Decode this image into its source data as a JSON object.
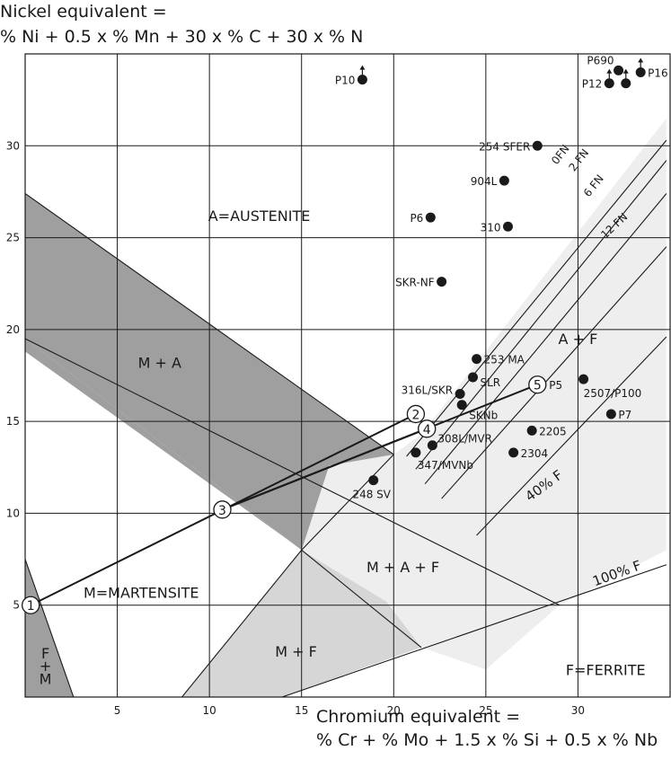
{
  "chart_data": {
    "type": "scatter",
    "ylabel_lines": [
      "Nickel equivalent =",
      "% Ni + 0.5 x % Mn + 30 x % C + 30 x % N"
    ],
    "xlabel_lines": [
      "Chromium equivalent =",
      "% Cr + % Mo + 1.5 x % Si + 0.5 x % Nb"
    ],
    "xlim": [
      0,
      35
    ],
    "ylim": [
      0,
      35
    ],
    "grid": true,
    "x_ticks": [
      5,
      10,
      15,
      20,
      25,
      30
    ],
    "y_ticks": [
      5,
      10,
      15,
      20,
      25,
      30
    ],
    "points": [
      {
        "label": "P10",
        "x": 18.3,
        "y": 33.6,
        "arrow": true
      },
      {
        "label": "P690",
        "x": 32.2,
        "y": 34.1,
        "arrow": false
      },
      {
        "label": "P12",
        "x": 31.7,
        "y": 33.4,
        "arrow": true
      },
      {
        "label": "",
        "x": 32.6,
        "y": 33.4,
        "arrow": true
      },
      {
        "label": "P16",
        "x": 33.4,
        "y": 34.0,
        "arrow": true
      },
      {
        "label": "254 SFER",
        "x": 27.8,
        "y": 30.0,
        "arrow": false
      },
      {
        "label": "904L",
        "x": 26.0,
        "y": 28.1,
        "arrow": false
      },
      {
        "label": "P6",
        "x": 22.0,
        "y": 26.1,
        "arrow": false
      },
      {
        "label": "310",
        "x": 26.2,
        "y": 25.6,
        "arrow": false
      },
      {
        "label": "SKR-NF",
        "x": 22.6,
        "y": 22.6,
        "arrow": false
      },
      {
        "label": "253 MA",
        "x": 24.5,
        "y": 18.4,
        "arrow": false
      },
      {
        "label": "SLR",
        "x": 24.3,
        "y": 17.4,
        "arrow": false
      },
      {
        "label": "316L/SKR",
        "x": 23.6,
        "y": 16.5,
        "arrow": false
      },
      {
        "label": "SKNb",
        "x": 23.7,
        "y": 15.9,
        "arrow": false
      },
      {
        "label": "2507/P100",
        "x": 30.3,
        "y": 17.3,
        "arrow": false
      },
      {
        "label": "P7",
        "x": 31.8,
        "y": 15.4,
        "arrow": false
      },
      {
        "label": "2205",
        "x": 27.5,
        "y": 14.5,
        "arrow": false
      },
      {
        "label": "308L/MVR",
        "x": 22.1,
        "y": 13.7,
        "arrow": false
      },
      {
        "label": "2304",
        "x": 26.5,
        "y": 13.3,
        "arrow": false
      },
      {
        "label": "347/MVNb",
        "x": 21.2,
        "y": 13.3,
        "arrow": false
      },
      {
        "label": "248 SV",
        "x": 18.9,
        "y": 11.8,
        "arrow": false
      }
    ],
    "ferrite_lines": [
      {
        "label": "0FN"
      },
      {
        "label": "2 FN"
      },
      {
        "label": "6 FN"
      },
      {
        "label": "12 FN"
      },
      {
        "label": "40% F"
      },
      {
        "label": "100% F"
      }
    ],
    "regions": [
      {
        "label": "A=AUSTENITE"
      },
      {
        "label": "M + A"
      },
      {
        "label": "A + F"
      },
      {
        "label": "M + A + F"
      },
      {
        "label": "M=MARTENSITE"
      },
      {
        "label": "M + F"
      },
      {
        "label": "F=FERRITE"
      },
      {
        "label": "F"
      },
      {
        "label": "+"
      },
      {
        "label": "M"
      }
    ],
    "mixing_points": [
      {
        "label": "1",
        "x": 0.3,
        "y": 5.0
      },
      {
        "label": "2",
        "x": 21.2,
        "y": 15.4
      },
      {
        "label": "3",
        "x": 10.7,
        "y": 10.2
      },
      {
        "label": "4",
        "x": 21.8,
        "y": 14.6
      },
      {
        "label": "5",
        "x": 27.8,
        "y": 17.0
      }
    ],
    "mixing_lines": [
      [
        1,
        2
      ],
      [
        3,
        4
      ],
      [
        3,
        5
      ]
    ]
  }
}
